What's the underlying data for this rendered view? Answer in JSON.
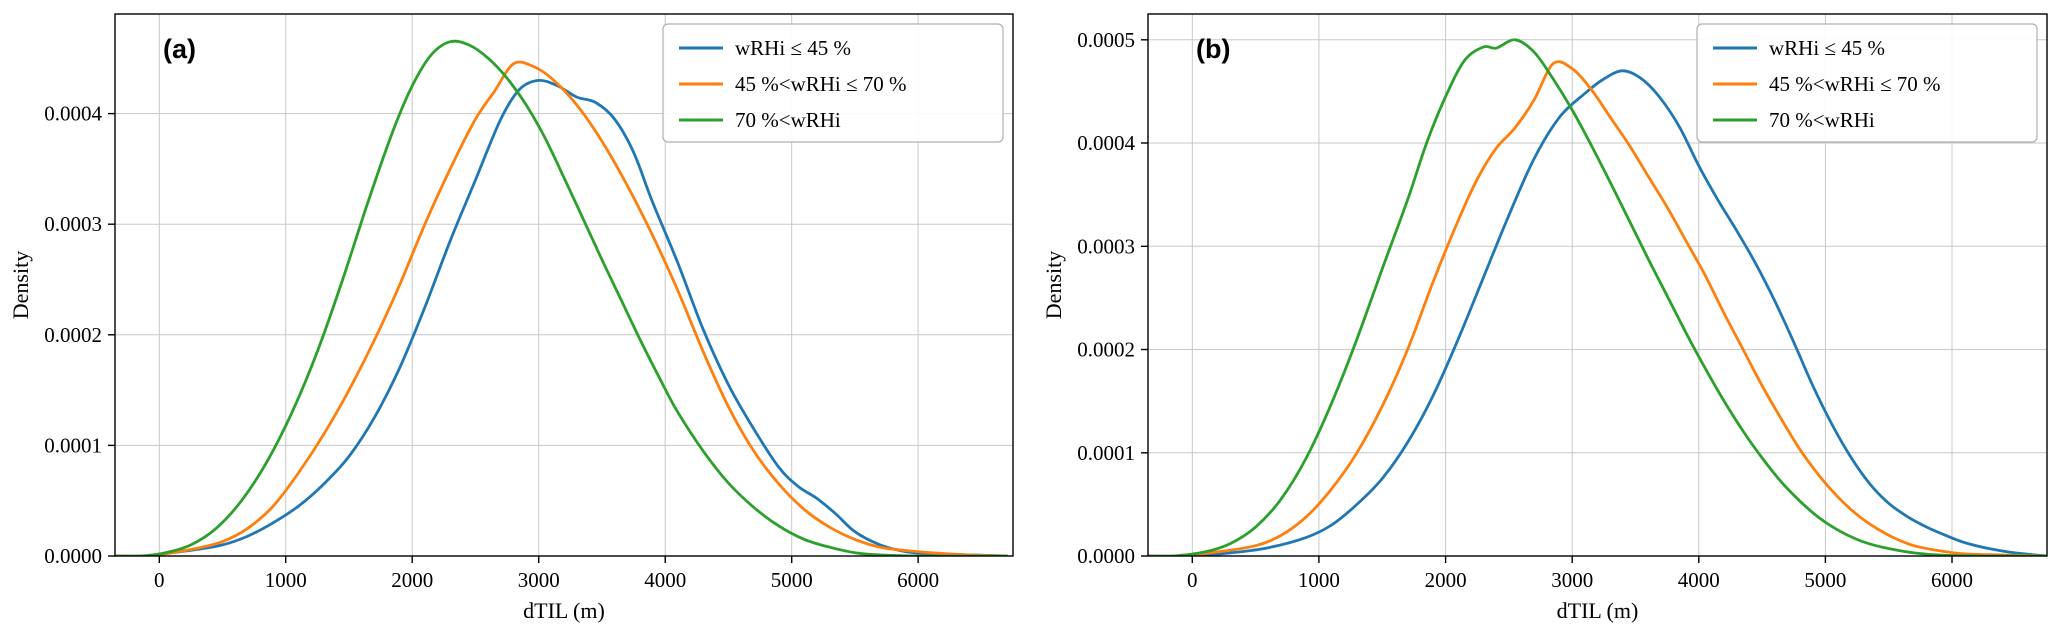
{
  "figure": {
    "background": "#ffffff",
    "grid_color": "#c8c8c8",
    "frame_color": "#000000",
    "legend_border_color": "#b0b0b0"
  },
  "chart_data": [
    {
      "type": "line",
      "panel_label": "(a)",
      "xlabel": "dTIL (m)",
      "ylabel": "Density",
      "xlim": [
        -350,
        6750
      ],
      "ylim": [
        0,
        0.00049
      ],
      "grid": true,
      "legend_position": "upper right",
      "xticks": [
        0,
        1000,
        2000,
        3000,
        4000,
        5000,
        6000
      ],
      "xtick_labels": [
        "0",
        "1000",
        "2000",
        "3000",
        "4000",
        "5000",
        "6000"
      ],
      "yticks": [
        0,
        0.0001,
        0.0002,
        0.0003,
        0.0004
      ],
      "ytick_labels": [
        "0.0000",
        "0.0001",
        "0.0002",
        "0.0003",
        "0.0004"
      ],
      "series": [
        {
          "name": "wRHi ≤ 45 %",
          "color": "#1f77b4",
          "points": [
            [
              -350,
              0
            ],
            [
              -100,
              0
            ],
            [
              100,
              3e-06
            ],
            [
              300,
              6e-06
            ],
            [
              500,
              1e-05
            ],
            [
              700,
              1.8e-05
            ],
            [
              900,
              3e-05
            ],
            [
              1100,
              4.5e-05
            ],
            [
              1300,
              6.5e-05
            ],
            [
              1500,
              9e-05
            ],
            [
              1700,
              0.000125
            ],
            [
              1900,
              0.00017
            ],
            [
              2100,
              0.000225
            ],
            [
              2300,
              0.000285
            ],
            [
              2500,
              0.00034
            ],
            [
              2700,
              0.000395
            ],
            [
              2850,
              0.000422
            ],
            [
              3000,
              0.00043
            ],
            [
              3150,
              0.000425
            ],
            [
              3300,
              0.000415
            ],
            [
              3450,
              0.00041
            ],
            [
              3600,
              0.000395
            ],
            [
              3750,
              0.000365
            ],
            [
              3900,
              0.00032
            ],
            [
              4100,
              0.000265
            ],
            [
              4300,
              0.000205
            ],
            [
              4500,
              0.000155
            ],
            [
              4700,
              0.000115
            ],
            [
              4900,
              8e-05
            ],
            [
              5050,
              6.3e-05
            ],
            [
              5200,
              5.2e-05
            ],
            [
              5350,
              3.8e-05
            ],
            [
              5500,
              2.2e-05
            ],
            [
              5700,
              1e-05
            ],
            [
              5900,
              4e-06
            ],
            [
              6100,
              2e-06
            ],
            [
              6400,
              1e-06
            ],
            [
              6700,
              0
            ]
          ]
        },
        {
          "name": "45 %<wRHi ≤ 70 %",
          "color": "#ff7f0e",
          "points": [
            [
              -350,
              0
            ],
            [
              -100,
              0
            ],
            [
              100,
              3e-06
            ],
            [
              300,
              7e-06
            ],
            [
              500,
              1.3e-05
            ],
            [
              700,
              2.5e-05
            ],
            [
              900,
              4.5e-05
            ],
            [
              1100,
              7.5e-05
            ],
            [
              1300,
              0.00011
            ],
            [
              1500,
              0.00015
            ],
            [
              1700,
              0.000195
            ],
            [
              1900,
              0.000245
            ],
            [
              2100,
              0.0003
            ],
            [
              2300,
              0.00035
            ],
            [
              2500,
              0.000395
            ],
            [
              2650,
              0.00042
            ],
            [
              2800,
              0.000445
            ],
            [
              2950,
              0.000443
            ],
            [
              3100,
              0.000432
            ],
            [
              3300,
              0.000408
            ],
            [
              3500,
              0.000375
            ],
            [
              3700,
              0.000335
            ],
            [
              3900,
              0.00029
            ],
            [
              4100,
              0.00024
            ],
            [
              4300,
              0.000185
            ],
            [
              4500,
              0.000135
            ],
            [
              4700,
              9.5e-05
            ],
            [
              4900,
              6.5e-05
            ],
            [
              5100,
              4.2e-05
            ],
            [
              5300,
              2.6e-05
            ],
            [
              5500,
              1.5e-05
            ],
            [
              5700,
              8e-06
            ],
            [
              5900,
              5e-06
            ],
            [
              6100,
              3e-06
            ],
            [
              6400,
              1e-06
            ],
            [
              6700,
              0
            ]
          ]
        },
        {
          "name": "70 %<wRHi",
          "color": "#2ca02c",
          "points": [
            [
              -350,
              0
            ],
            [
              -150,
              0
            ],
            [
              50,
              3e-06
            ],
            [
              250,
              1e-05
            ],
            [
              450,
              2.5e-05
            ],
            [
              650,
              5e-05
            ],
            [
              850,
              8.5e-05
            ],
            [
              1050,
              0.00013
            ],
            [
              1250,
              0.000185
            ],
            [
              1450,
              0.00025
            ],
            [
              1650,
              0.00032
            ],
            [
              1850,
              0.000385
            ],
            [
              2000,
              0.000425
            ],
            [
              2150,
              0.000453
            ],
            [
              2300,
              0.000465
            ],
            [
              2450,
              0.000462
            ],
            [
              2600,
              0.00045
            ],
            [
              2750,
              0.000432
            ],
            [
              2900,
              0.000408
            ],
            [
              3050,
              0.000378
            ],
            [
              3200,
              0.000342
            ],
            [
              3350,
              0.000305
            ],
            [
              3500,
              0.000268
            ],
            [
              3650,
              0.000232
            ],
            [
              3800,
              0.000196
            ],
            [
              3950,
              0.000162
            ],
            [
              4100,
              0.00013
            ],
            [
              4300,
              9.5e-05
            ],
            [
              4500,
              6.6e-05
            ],
            [
              4700,
              4.4e-05
            ],
            [
              4900,
              2.7e-05
            ],
            [
              5100,
              1.5e-05
            ],
            [
              5300,
              8e-06
            ],
            [
              5500,
              3e-06
            ],
            [
              5700,
              1e-06
            ],
            [
              6000,
              0
            ],
            [
              6700,
              0
            ]
          ]
        }
      ]
    },
    {
      "type": "line",
      "panel_label": "(b)",
      "xlabel": "dTIL (m)",
      "ylabel": "Density",
      "xlim": [
        -350,
        6750
      ],
      "ylim": [
        0,
        0.000525
      ],
      "grid": true,
      "legend_position": "upper right",
      "xticks": [
        0,
        1000,
        2000,
        3000,
        4000,
        5000,
        6000
      ],
      "xtick_labels": [
        "0",
        "1000",
        "2000",
        "3000",
        "4000",
        "5000",
        "6000"
      ],
      "yticks": [
        0,
        0.0001,
        0.0002,
        0.0003,
        0.0004,
        0.0005
      ],
      "ytick_labels": [
        "0.0000",
        "0.0001",
        "0.0002",
        "0.0003",
        "0.0004",
        "0.0005"
      ],
      "series": [
        {
          "name": "wRHi ≤ 45 %",
          "color": "#1f77b4",
          "points": [
            [
              -350,
              0
            ],
            [
              0,
              0
            ],
            [
              300,
              3e-06
            ],
            [
              600,
              8e-06
            ],
            [
              900,
              1.8e-05
            ],
            [
              1100,
              3e-05
            ],
            [
              1300,
              5e-05
            ],
            [
              1500,
              7.5e-05
            ],
            [
              1700,
              0.00011
            ],
            [
              1900,
              0.000155
            ],
            [
              2100,
              0.00021
            ],
            [
              2300,
              0.00027
            ],
            [
              2500,
              0.00033
            ],
            [
              2700,
              0.000385
            ],
            [
              2900,
              0.000425
            ],
            [
              3100,
              0.000448
            ],
            [
              3250,
              0.000462
            ],
            [
              3400,
              0.00047
            ],
            [
              3550,
              0.000462
            ],
            [
              3700,
              0.000443
            ],
            [
              3850,
              0.000415
            ],
            [
              4000,
              0.000378
            ],
            [
              4150,
              0.000345
            ],
            [
              4300,
              0.000315
            ],
            [
              4450,
              0.000283
            ],
            [
              4600,
              0.000247
            ],
            [
              4750,
              0.000207
            ],
            [
              4900,
              0.000165
            ],
            [
              5050,
              0.000128
            ],
            [
              5200,
              9.6e-05
            ],
            [
              5350,
              7e-05
            ],
            [
              5500,
              5.1e-05
            ],
            [
              5650,
              3.8e-05
            ],
            [
              5800,
              2.8e-05
            ],
            [
              5950,
              2e-05
            ],
            [
              6100,
              1.3e-05
            ],
            [
              6300,
              7e-06
            ],
            [
              6500,
              3e-06
            ],
            [
              6750,
              0
            ]
          ]
        },
        {
          "name": "45 %<wRHi ≤ 70 %",
          "color": "#ff7f0e",
          "points": [
            [
              -350,
              0
            ],
            [
              -100,
              0
            ],
            [
              200,
              4e-06
            ],
            [
              500,
              1e-05
            ],
            [
              700,
              2e-05
            ],
            [
              900,
              3.8e-05
            ],
            [
              1100,
              6.5e-05
            ],
            [
              1300,
              0.0001
            ],
            [
              1500,
              0.000145
            ],
            [
              1700,
              0.0002
            ],
            [
              1900,
              0.000265
            ],
            [
              2100,
              0.000325
            ],
            [
              2250,
              0.000365
            ],
            [
              2400,
              0.000395
            ],
            [
              2550,
              0.000415
            ],
            [
              2700,
              0.000442
            ],
            [
              2850,
              0.000477
            ],
            [
              3000,
              0.000472
            ],
            [
              3150,
              0.000452
            ],
            [
              3300,
              0.000425
            ],
            [
              3450,
              0.000398
            ],
            [
              3600,
              0.000368
            ],
            [
              3750,
              0.000338
            ],
            [
              3900,
              0.000305
            ],
            [
              4050,
              0.000272
            ],
            [
              4200,
              0.000235
            ],
            [
              4350,
              0.0002
            ],
            [
              4500,
              0.000165
            ],
            [
              4650,
              0.000133
            ],
            [
              4800,
              0.000103
            ],
            [
              4950,
              7.8e-05
            ],
            [
              5100,
              5.7e-05
            ],
            [
              5250,
              4e-05
            ],
            [
              5400,
              2.7e-05
            ],
            [
              5550,
              1.7e-05
            ],
            [
              5700,
              1e-05
            ],
            [
              5900,
              5e-06
            ],
            [
              6100,
              2e-06
            ],
            [
              6400,
              1e-06
            ],
            [
              6750,
              0
            ]
          ]
        },
        {
          "name": "70 %<wRHi",
          "color": "#2ca02c",
          "points": [
            [
              -350,
              0
            ],
            [
              -150,
              0
            ],
            [
              100,
              4e-06
            ],
            [
              300,
              1.2e-05
            ],
            [
              500,
              2.8e-05
            ],
            [
              700,
              5.5e-05
            ],
            [
              900,
              9.5e-05
            ],
            [
              1100,
              0.000148
            ],
            [
              1300,
              0.00021
            ],
            [
              1500,
              0.000278
            ],
            [
              1700,
              0.000345
            ],
            [
              1850,
              0.0004
            ],
            [
              2000,
              0.000445
            ],
            [
              2150,
              0.00048
            ],
            [
              2300,
              0.000493
            ],
            [
              2400,
              0.000492
            ],
            [
              2550,
              0.0005
            ],
            [
              2700,
              0.000488
            ],
            [
              2850,
              0.000462
            ],
            [
              3000,
              0.000432
            ],
            [
              3150,
              0.000398
            ],
            [
              3300,
              0.000362
            ],
            [
              3450,
              0.000325
            ],
            [
              3600,
              0.000288
            ],
            [
              3750,
              0.000252
            ],
            [
              3900,
              0.000216
            ],
            [
              4050,
              0.000182
            ],
            [
              4200,
              0.00015
            ],
            [
              4350,
              0.000121
            ],
            [
              4500,
              9.5e-05
            ],
            [
              4650,
              7.2e-05
            ],
            [
              4800,
              5.3e-05
            ],
            [
              4950,
              3.7e-05
            ],
            [
              5100,
              2.5e-05
            ],
            [
              5250,
              1.6e-05
            ],
            [
              5400,
              1e-05
            ],
            [
              5550,
              6e-06
            ],
            [
              5700,
              3e-06
            ],
            [
              5900,
              1e-06
            ],
            [
              6200,
              0
            ],
            [
              6750,
              0
            ]
          ]
        }
      ]
    }
  ]
}
